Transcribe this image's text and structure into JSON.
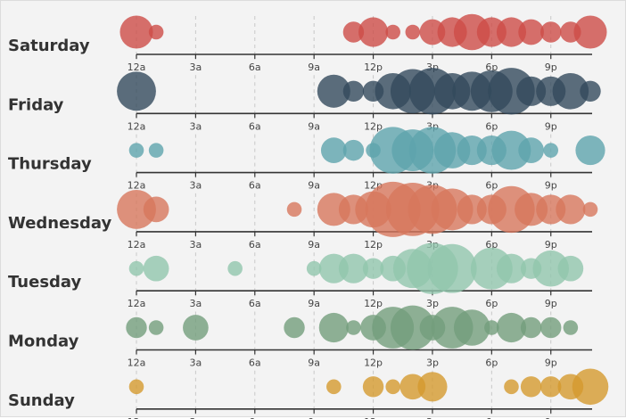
{
  "chart_data": {
    "type": "scatter",
    "title": "",
    "xlabel": "",
    "ylabel": "",
    "x_tick_labels": [
      "12a",
      "3a",
      "6a",
      "9a",
      "12p",
      "3p",
      "6p",
      "9p"
    ],
    "hours": [
      0,
      1,
      2,
      3,
      4,
      5,
      6,
      7,
      8,
      9,
      10,
      11,
      12,
      13,
      14,
      15,
      16,
      17,
      18,
      19,
      20,
      21,
      22,
      23
    ],
    "series": [
      {
        "name": "Saturday",
        "color": "#cd4c47",
        "values": [
          5,
          1,
          0,
          0,
          0,
          0,
          0,
          0,
          0,
          0,
          0,
          2,
          4,
          1,
          1,
          3,
          4,
          6,
          4,
          4,
          3,
          2,
          2,
          5
        ]
      },
      {
        "name": "Friday",
        "color": "#334a5c",
        "values": [
          7,
          0,
          0,
          0,
          0,
          0,
          0,
          0,
          0,
          0,
          5,
          2,
          2,
          6,
          9,
          10,
          6,
          7,
          8,
          10,
          4,
          4,
          6,
          2
        ]
      },
      {
        "name": "Thursday",
        "color": "#5ea4ac",
        "values": [
          1,
          1,
          0,
          0,
          0,
          0,
          0,
          0,
          0,
          0,
          3,
          2,
          1,
          10,
          8,
          10,
          6,
          4,
          4,
          7,
          3,
          1,
          0,
          4
        ]
      },
      {
        "name": "Wednesday",
        "color": "#d7775d",
        "values": [
          7,
          3,
          0,
          0,
          0,
          0,
          0,
          0,
          1,
          0,
          5,
          4,
          6,
          14,
          13,
          11,
          8,
          4,
          4,
          10,
          5,
          4,
          4,
          1
        ]
      },
      {
        "name": "Tuesday",
        "color": "#91c6ad",
        "values": [
          1,
          3,
          0,
          0,
          0,
          1,
          0,
          0,
          0,
          1,
          4,
          4,
          2,
          3,
          7,
          12,
          11,
          0,
          8,
          4,
          2,
          6,
          3,
          0
        ]
      },
      {
        "name": "Monday",
        "color": "#739d7c",
        "values": [
          2,
          1,
          0,
          3,
          0,
          0,
          0,
          0,
          2,
          0,
          4,
          1,
          3,
          8,
          9,
          3,
          8,
          6,
          1,
          4,
          2,
          2,
          1,
          0
        ]
      },
      {
        "name": "Sunday",
        "color": "#d59a2e",
        "values": [
          1,
          0,
          0,
          0,
          0,
          0,
          0,
          0,
          0,
          0,
          1,
          0,
          2,
          1,
          3,
          4,
          0,
          0,
          0,
          1,
          2,
          2,
          3,
          6
        ]
      }
    ]
  }
}
